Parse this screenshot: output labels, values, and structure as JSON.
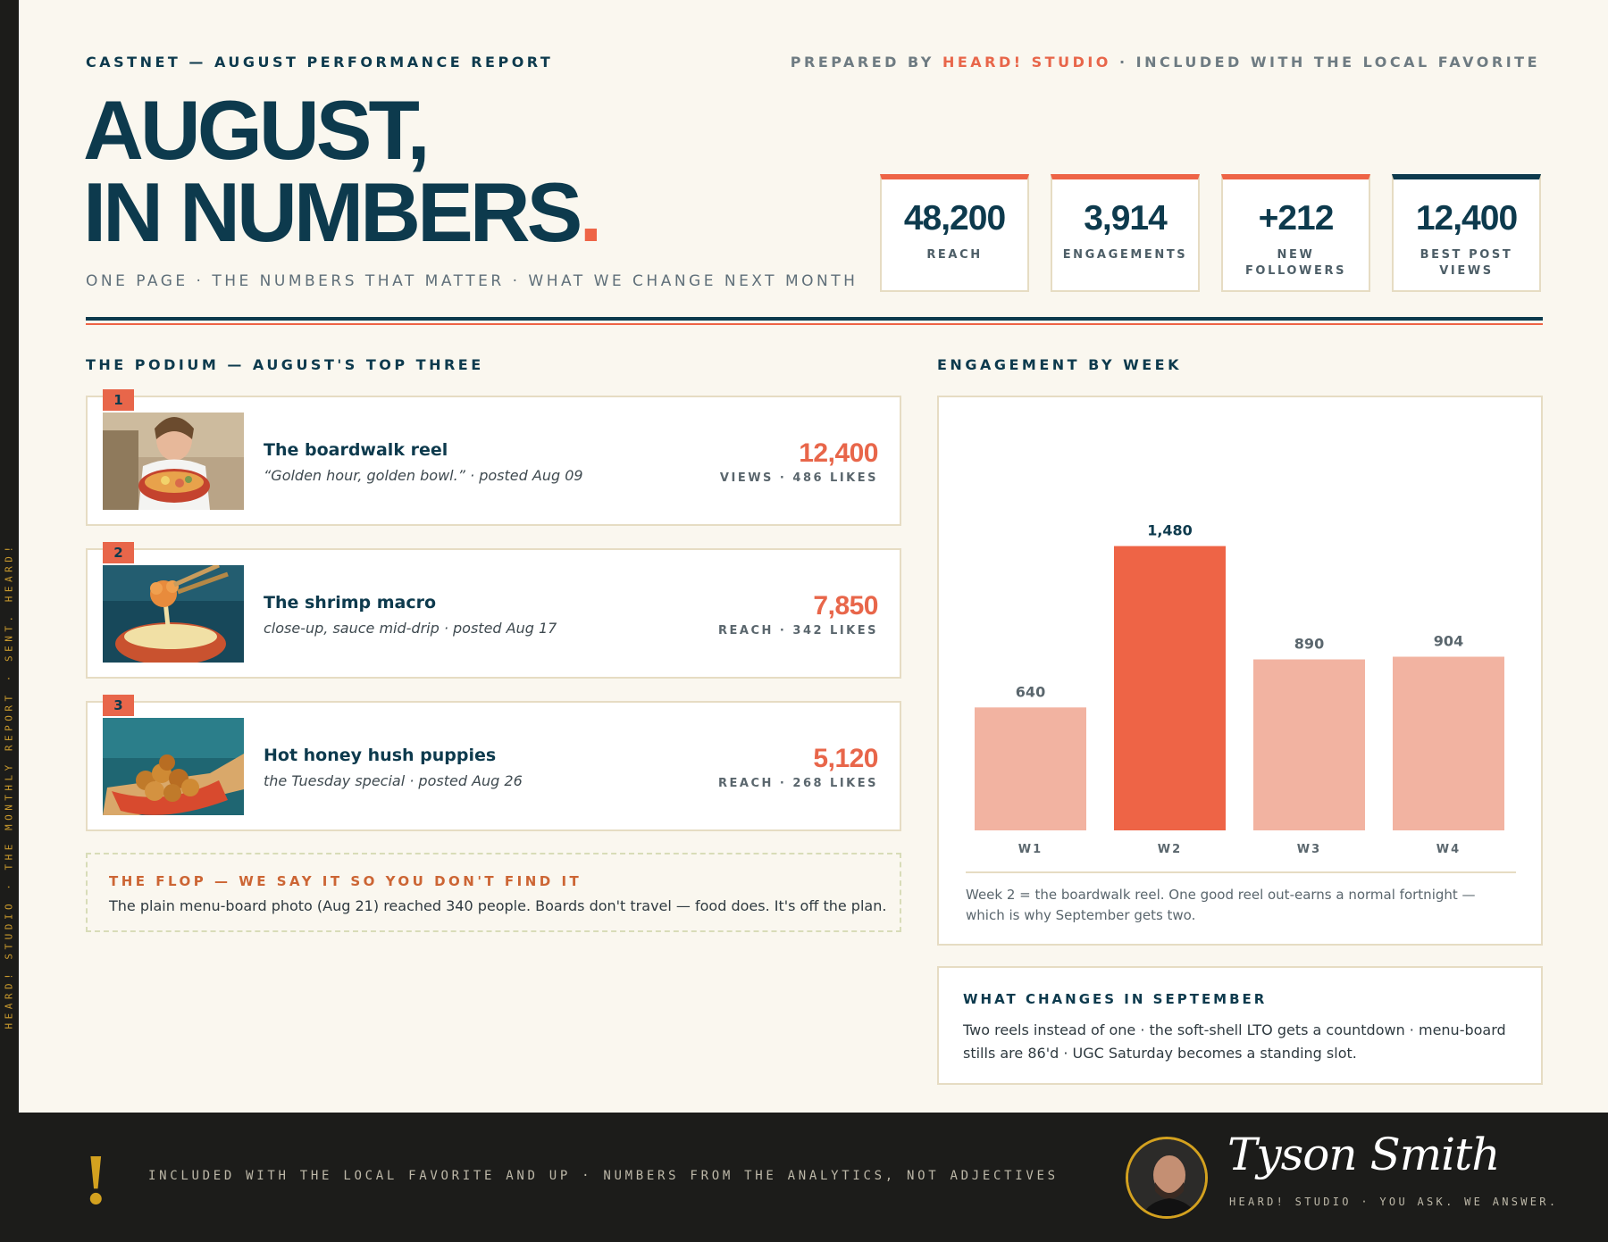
{
  "side_strip": "HEARD! STUDIO · THE MONTHLY REPORT · SENT. HEARD!",
  "header": {
    "kicker_left": "CASTNET — AUGUST PERFORMANCE REPORT",
    "kicker_right_prefix": "PREPARED BY ",
    "kicker_right_brand": "HEARD! STUDIO",
    "kicker_right_suffix": " · INCLUDED WITH THE LOCAL FAVORITE",
    "headline_line1": "AUGUST,",
    "headline_line2": "IN NUMBERS",
    "headline_dot": ".",
    "subline": "ONE PAGE · THE NUMBERS THAT MATTER · WHAT WE CHANGE NEXT MONTH"
  },
  "stats": [
    {
      "value": "48,200",
      "label": "REACH"
    },
    {
      "value": "3,914",
      "label": "ENGAGEMENTS"
    },
    {
      "value": "+212",
      "label": "NEW FOLLOWERS"
    },
    {
      "value": "12,400",
      "label": "BEST POST VIEWS"
    }
  ],
  "podium": {
    "title": "THE PODIUM — AUGUST'S TOP THREE",
    "items": [
      {
        "rank": "1",
        "title": "The boardwalk reel",
        "desc": "“Golden hour, golden bowl.” · posted Aug 09",
        "value": "12,400",
        "meta": "VIEWS · 486 LIKES"
      },
      {
        "rank": "2",
        "title": "The shrimp macro",
        "desc": "close-up, sauce mid-drip · posted Aug 17",
        "value": "7,850",
        "meta": "REACH · 342 LIKES"
      },
      {
        "rank": "3",
        "title": "Hot honey hush puppies",
        "desc": "the Tuesday special · posted Aug 26",
        "value": "5,120",
        "meta": "REACH · 268 LIKES"
      }
    ]
  },
  "flop": {
    "title": "THE FLOP — WE SAY IT SO YOU DON'T FIND IT",
    "text": "The plain menu-board photo (Aug 21) reached 340 people. Boards don't travel — food does. It's off the plan."
  },
  "engagement": {
    "title": "ENGAGEMENT BY WEEK",
    "note": "Week 2 = the boardwalk reel. One good reel out-earns a normal fortnight — which is why September gets two."
  },
  "chart_data": {
    "type": "bar",
    "categories": [
      "W1",
      "W2",
      "W3",
      "W4"
    ],
    "values": [
      640,
      1480,
      890,
      904
    ],
    "value_labels": [
      "640",
      "1,480",
      "890",
      "904"
    ],
    "highlight_index": 1,
    "colors": {
      "bar": "#f2b3a1",
      "highlight": "#ee6446"
    },
    "ylim": [
      0,
      1650
    ],
    "grid": false
  },
  "changes": {
    "title": "WHAT CHANGES IN SEPTEMBER",
    "text": "Two reels instead of one · the soft-shell LTO gets a countdown · menu-board stills are 86'd · UGC Saturday becomes a standing slot."
  },
  "footer": {
    "mark": "!",
    "text": "INCLUDED WITH THE LOCAL FAVORITE AND UP · NUMBERS FROM THE ANALYTICS, NOT ADJECTIVES",
    "signature": "Tyson Smith",
    "sub": "HEARD! STUDIO · YOU ASK. WE ANSWER."
  },
  "colors": {
    "navy": "#0d3a4d",
    "coral": "#ee6446",
    "cream": "#faf7ef",
    "gold": "#d3a11f"
  }
}
